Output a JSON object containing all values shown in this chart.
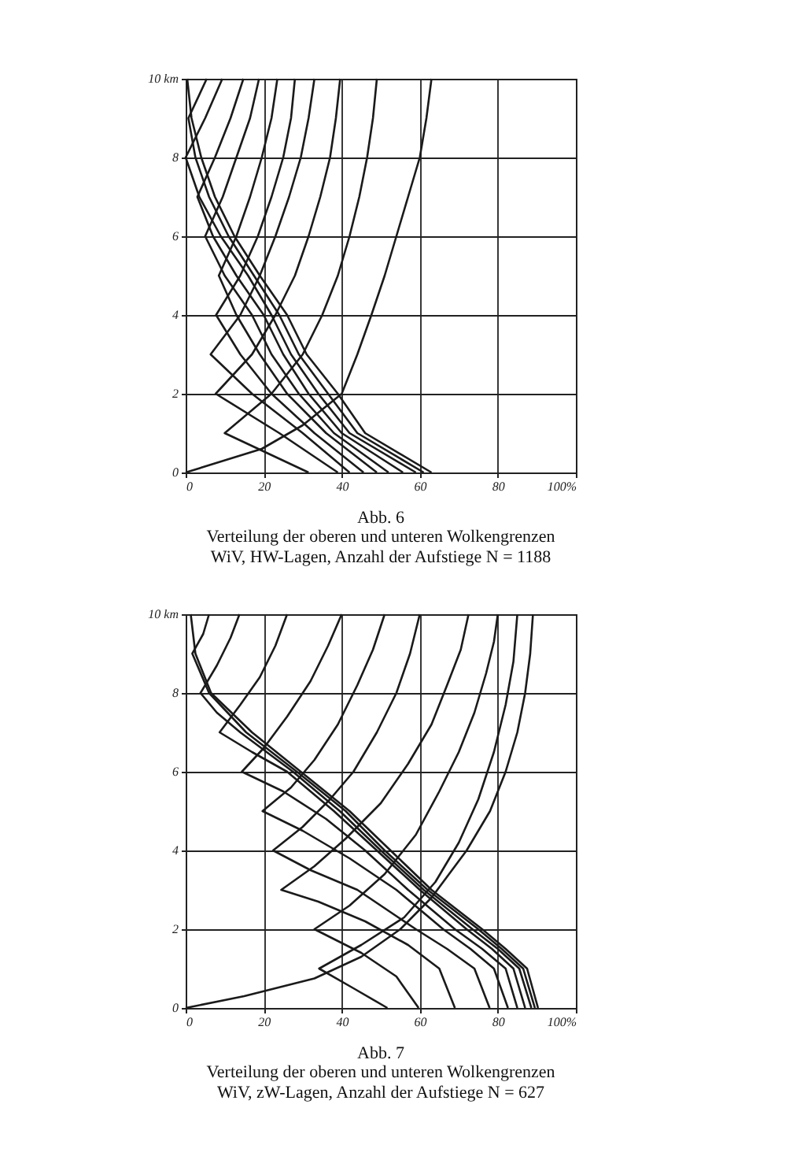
{
  "chart_data": [
    {
      "type": "line",
      "title": "Abb. 6",
      "annotations": [
        "Verteilung der oberen und unteren Wolkengrenzen",
        "WiV, HW-Lagen, Anzahl der Aufstiege N = 1188"
      ],
      "xlim": [
        0,
        100
      ],
      "xticks": [
        0,
        20,
        40,
        60,
        80,
        {
          "value": 100,
          "label": "100%"
        }
      ],
      "ylim": [
        0,
        10
      ],
      "yticks": [
        0,
        2,
        4,
        6,
        8,
        {
          "value": 10,
          "label": "10 km"
        }
      ],
      "grid": true,
      "series": [
        {
          "color": "#1a1a1a",
          "x": [
            0,
            19.5,
            30,
            40,
            44,
            47.6,
            51,
            54,
            57,
            60,
            61.7,
            63
          ],
          "values": [
            0,
            0.6,
            1.2,
            2,
            3,
            4,
            5,
            6,
            7,
            8,
            9,
            10
          ]
        },
        {
          "color": "#1a1a1a",
          "x": [
            31.5,
            10,
            22,
            30,
            35,
            39,
            42,
            44.5,
            46.5,
            48,
            49
          ],
          "values": [
            0,
            1,
            2,
            3,
            4,
            5,
            6,
            7,
            8,
            9,
            10
          ]
        },
        {
          "color": "#1a1a1a",
          "x": [
            39,
            24,
            7.7,
            17,
            23,
            28,
            31.5,
            34.5,
            37,
            38.5,
            39.6
          ],
          "values": [
            0,
            1,
            2,
            3,
            4,
            5,
            6,
            7,
            8,
            9,
            10
          ]
        },
        {
          "color": "#1a1a1a",
          "x": [
            42,
            30,
            17,
            6.4,
            14,
            19,
            23,
            26.5,
            29.5,
            31.5,
            33
          ],
          "values": [
            0,
            1,
            2,
            3,
            4,
            5,
            6,
            7,
            8,
            9,
            10
          ]
        },
        {
          "color": "#1a1a1a",
          "x": [
            45.6,
            33,
            22,
            14,
            7.8,
            14,
            18.5,
            22,
            25,
            27,
            28
          ],
          "values": [
            0,
            1,
            2,
            3,
            4,
            5,
            6,
            7,
            8,
            9,
            10
          ]
        },
        {
          "color": "#1a1a1a",
          "x": [
            49,
            36,
            26,
            19,
            13,
            8.5,
            13,
            16.5,
            19.5,
            22,
            23.5
          ],
          "values": [
            0,
            1,
            2,
            3,
            4,
            5,
            6,
            7,
            8,
            9,
            10
          ]
        },
        {
          "color": "#1a1a1a",
          "x": [
            52,
            38,
            29,
            22,
            17,
            10,
            5,
            9.5,
            13,
            16.5,
            18.8
          ],
          "values": [
            0,
            1,
            2,
            3,
            4,
            5,
            6,
            7,
            8,
            9,
            10
          ]
        },
        {
          "color": "#1a1a1a",
          "x": [
            55.7,
            40,
            31.5,
            25,
            20,
            13,
            7,
            3,
            7.5,
            11.5,
            14.8
          ],
          "values": [
            0,
            1,
            2,
            3,
            4,
            5,
            6,
            7,
            8,
            9,
            10
          ]
        },
        {
          "color": "#1a1a1a",
          "x": [
            59,
            42,
            34,
            27,
            22,
            16,
            9,
            3.5,
            0,
            5,
            9.4
          ],
          "values": [
            0,
            1,
            2,
            3,
            4,
            5,
            6,
            7,
            8,
            9,
            10
          ]
        },
        {
          "color": "#1a1a1a",
          "x": [
            61,
            44,
            36.5,
            29,
            24,
            17.5,
            11,
            6,
            2.5,
            0.7,
            5.4
          ],
          "values": [
            0,
            1,
            2,
            3,
            4,
            5,
            6,
            7,
            8,
            9,
            10
          ]
        },
        {
          "color": "#1a1a1a",
          "x": [
            63,
            46,
            39,
            31,
            26,
            19,
            12.5,
            7.5,
            4,
            1.5,
            0.4
          ],
          "values": [
            0,
            1,
            2,
            3,
            4,
            5,
            6,
            7,
            8,
            9,
            10
          ]
        }
      ]
    },
    {
      "type": "line",
      "title": "Abb. 7",
      "annotations": [
        "Verteilung der oberen und unteren Wolkengrenzen",
        "WiV, zW-Lagen, Anzahl der Aufstiege N = 627"
      ],
      "xlim": [
        0,
        100
      ],
      "xticks": [
        0,
        20,
        40,
        60,
        80,
        {
          "value": 100,
          "label": "100%"
        }
      ],
      "ylim": [
        0,
        10
      ],
      "yticks": [
        0,
        2,
        4,
        6,
        8,
        {
          "value": 10,
          "label": "10 km"
        }
      ],
      "grid": true,
      "series": [
        {
          "color": "#1a1a1a",
          "x": [
            0,
            15,
            33,
            45,
            55,
            63,
            72,
            78,
            82,
            85,
            87,
            88.3,
            89
          ],
          "values": [
            0,
            0.3,
            0.75,
            1.3,
            2,
            2.8,
            4,
            5,
            6,
            7,
            8,
            9,
            10
          ]
        },
        {
          "color": "#1a1a1a",
          "x": [
            51.7,
            43,
            34.2,
            45,
            56,
            64,
            70,
            75,
            79,
            82,
            84,
            85
          ],
          "values": [
            0,
            0.5,
            1,
            1.6,
            2.3,
            3.2,
            4.2,
            5.3,
            6.5,
            7.7,
            8.8,
            10
          ]
        },
        {
          "color": "#1a1a1a",
          "x": [
            59.7,
            54,
            45,
            33,
            42,
            51,
            59,
            65,
            70,
            74,
            77,
            79,
            80
          ],
          "values": [
            0,
            0.8,
            1.4,
            2,
            2.6,
            3.4,
            4.4,
            5.5,
            6.5,
            7.5,
            8.5,
            9.3,
            10
          ]
        },
        {
          "color": "#1a1a1a",
          "x": [
            69,
            65,
            57,
            46,
            34,
            24.5,
            33,
            41,
            50,
            57,
            63,
            67,
            70.5,
            72.5
          ],
          "values": [
            0,
            1,
            1.6,
            2.2,
            2.7,
            3,
            3.6,
            4.3,
            5.2,
            6.2,
            7.2,
            8.2,
            9.1,
            10
          ]
        },
        {
          "color": "#1a1a1a",
          "x": [
            77.9,
            74,
            67,
            59,
            44,
            32,
            22.4,
            30,
            37,
            43,
            49,
            54,
            57.5,
            60
          ],
          "values": [
            0,
            1,
            1.5,
            2,
            3,
            3.5,
            4,
            4.6,
            5.3,
            6,
            7,
            8,
            9,
            10
          ]
        },
        {
          "color": "#1a1a1a",
          "x": [
            82.6,
            79,
            73,
            66,
            54,
            42,
            30,
            19.7,
            27,
            33,
            39,
            44,
            48,
            51
          ],
          "values": [
            0,
            1,
            1.5,
            2,
            3,
            3.8,
            4.5,
            5,
            5.6,
            6.3,
            7.2,
            8.2,
            9.1,
            10
          ]
        },
        {
          "color": "#1a1a1a",
          "x": [
            85,
            82,
            76,
            69,
            57,
            46,
            36,
            25,
            14.4,
            20,
            26,
            32,
            36.5,
            40
          ],
          "values": [
            0,
            1,
            1.5,
            2,
            3,
            4,
            4.8,
            5.5,
            6,
            6.6,
            7.4,
            8.3,
            9.2,
            10
          ]
        },
        {
          "color": "#1a1a1a",
          "x": [
            87,
            84,
            78.5,
            72,
            60,
            49,
            38,
            26,
            17,
            8.7,
            14,
            19,
            23,
            26
          ],
          "values": [
            0,
            1,
            1.5,
            2,
            3,
            4,
            5,
            6,
            6.5,
            7,
            7.7,
            8.4,
            9.2,
            10
          ]
        },
        {
          "color": "#1a1a1a",
          "x": [
            88.6,
            85.5,
            80,
            73.5,
            61,
            50,
            39.5,
            27.5,
            14,
            8,
            3.8,
            8,
            11.5,
            13.8
          ],
          "values": [
            0,
            1,
            1.5,
            2,
            3,
            4,
            5,
            6,
            7,
            7.5,
            8,
            8.7,
            9.4,
            10
          ]
        },
        {
          "color": "#1a1a1a",
          "x": [
            89.5,
            86.5,
            81,
            75,
            62,
            51,
            41,
            28.5,
            15.5,
            6,
            1.7,
            4.5,
            6
          ],
          "values": [
            0,
            1,
            1.5,
            2,
            3,
            4,
            5,
            6,
            7,
            8,
            9,
            9.5,
            10
          ]
        },
        {
          "color": "#1a1a1a",
          "x": [
            90.3,
            87.5,
            82,
            76,
            63,
            52.5,
            42,
            29.5,
            17,
            6.5,
            2.5,
            1.3
          ],
          "values": [
            0,
            1,
            1.5,
            2,
            3,
            4,
            5,
            6,
            7,
            8,
            9,
            10
          ]
        }
      ]
    }
  ]
}
